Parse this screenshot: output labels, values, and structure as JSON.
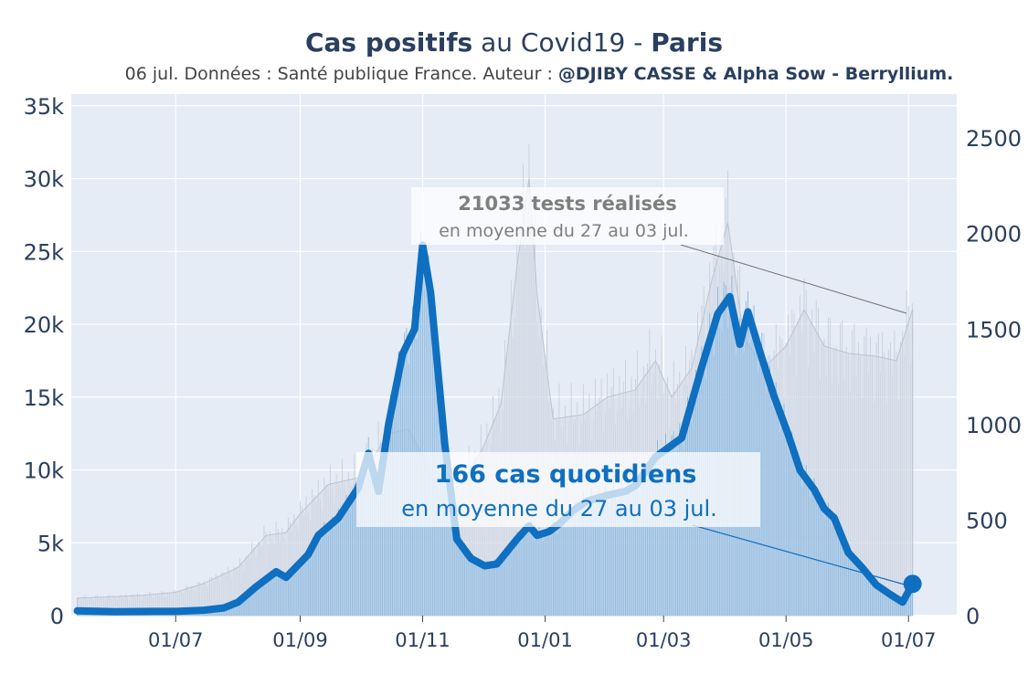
{
  "title": {
    "part1": "Cas positifs",
    "part2": " au Covid19 - ",
    "part3": "Paris"
  },
  "subtitle": {
    "text": "06 jul. Données : Santé publique France. Auteur : ",
    "author": "@DJIBY CASSE & Alpha Sow - Berryllium."
  },
  "colors": {
    "plot_bg": "#e5ecf6",
    "tests_fill": "#d3dae5",
    "cases_fill": "#9cc3e6",
    "cases_line": "#0f6fc0",
    "tests_annotation": "#7f7f7f"
  },
  "annotations": {
    "cases": {
      "bold": "166 cas quotidiens",
      "text": "en moyenne du 27 au 03 jul."
    },
    "tests": {
      "bold": "21033 tests réalisés",
      "text": "en moyenne du 27 au 03 jul."
    }
  },
  "chart_data": {
    "type": "area",
    "x_start": "2020-05-13",
    "x_end": "2021-07-03",
    "x_range": [
      "2020-05-10",
      "2021-07-25"
    ],
    "x_tick_dates": [
      "2020-07-01",
      "2020-09-01",
      "2020-11-01",
      "2021-01-01",
      "2021-03-01",
      "2021-05-01",
      "2021-07-01"
    ],
    "x_tick_labels": [
      "01/07",
      "01/09",
      "01/11",
      "01/01",
      "01/03",
      "01/05",
      "01/07"
    ],
    "y_left": {
      "range": [
        0,
        35800
      ],
      "ticks": [
        0,
        5000,
        10000,
        15000,
        20000,
        25000,
        30000,
        35000
      ],
      "tick_labels": [
        "0",
        "5k",
        "10k",
        "15k",
        "20k",
        "25k",
        "30k",
        "35k"
      ]
    },
    "y_right": {
      "range": [
        0,
        2730
      ],
      "ticks": [
        0,
        500,
        1000,
        1500,
        2000,
        2500
      ],
      "tick_labels": [
        "0",
        "500",
        "1000",
        "1500",
        "2000",
        "2500"
      ]
    },
    "tests_7day": [
      [
        "2020-05-13",
        1200
      ],
      [
        "2020-06-01",
        1300
      ],
      [
        "2020-06-15",
        1400
      ],
      [
        "2020-07-01",
        1600
      ],
      [
        "2020-07-15",
        2200
      ],
      [
        "2020-08-01",
        3300
      ],
      [
        "2020-08-15",
        5500
      ],
      [
        "2020-08-25",
        5700
      ],
      [
        "2020-09-01",
        7000
      ],
      [
        "2020-09-15",
        9000
      ],
      [
        "2020-10-01",
        9500
      ],
      [
        "2020-10-15",
        12500
      ],
      [
        "2020-10-25",
        12800
      ],
      [
        "2020-11-01",
        11000
      ],
      [
        "2020-11-10",
        8000
      ],
      [
        "2020-11-20",
        9000
      ],
      [
        "2020-12-01",
        11500
      ],
      [
        "2020-12-10",
        14500
      ],
      [
        "2020-12-18",
        24000
      ],
      [
        "2020-12-24",
        30000
      ],
      [
        "2020-12-28",
        22000
      ],
      [
        "2021-01-05",
        13500
      ],
      [
        "2021-01-20",
        13800
      ],
      [
        "2021-02-01",
        15000
      ],
      [
        "2021-02-15",
        15500
      ],
      [
        "2021-02-25",
        17500
      ],
      [
        "2021-03-05",
        15000
      ],
      [
        "2021-03-15",
        17000
      ],
      [
        "2021-03-25",
        23000
      ],
      [
        "2021-04-02",
        27000
      ],
      [
        "2021-04-10",
        19000
      ],
      [
        "2021-04-20",
        17000
      ],
      [
        "2021-05-01",
        18500
      ],
      [
        "2021-05-10",
        21000
      ],
      [
        "2021-05-20",
        18500
      ],
      [
        "2021-06-01",
        18000
      ],
      [
        "2021-06-15",
        17800
      ],
      [
        "2021-06-25",
        17500
      ],
      [
        "2021-07-03",
        21033
      ]
    ],
    "cases_7day": [
      [
        "2020-05-13",
        25
      ],
      [
        "2020-06-01",
        20
      ],
      [
        "2020-06-20",
        22
      ],
      [
        "2020-07-01",
        22
      ],
      [
        "2020-07-15",
        28
      ],
      [
        "2020-07-25",
        40
      ],
      [
        "2020-08-01",
        70
      ],
      [
        "2020-08-10",
        150
      ],
      [
        "2020-08-20",
        230
      ],
      [
        "2020-08-25",
        200
      ],
      [
        "2020-09-05",
        320
      ],
      [
        "2020-09-10",
        420
      ],
      [
        "2020-09-20",
        510
      ],
      [
        "2020-09-30",
        670
      ],
      [
        "2020-10-05",
        850
      ],
      [
        "2020-10-10",
        650
      ],
      [
        "2020-10-15",
        1000
      ],
      [
        "2020-10-22",
        1370
      ],
      [
        "2020-10-28",
        1500
      ],
      [
        "2020-11-01",
        1940
      ],
      [
        "2020-11-05",
        1690
      ],
      [
        "2020-11-12",
        900
      ],
      [
        "2020-11-18",
        400
      ],
      [
        "2020-11-25",
        300
      ],
      [
        "2020-12-02",
        260
      ],
      [
        "2020-12-08",
        270
      ],
      [
        "2020-12-18",
        400
      ],
      [
        "2020-12-24",
        470
      ],
      [
        "2020-12-28",
        420
      ],
      [
        "2021-01-03",
        440
      ],
      [
        "2021-01-08",
        480
      ],
      [
        "2021-01-15",
        550
      ],
      [
        "2021-01-22",
        600
      ],
      [
        "2021-02-01",
        630
      ],
      [
        "2021-02-10",
        650
      ],
      [
        "2021-02-15",
        680
      ],
      [
        "2021-02-25",
        830
      ],
      [
        "2021-03-10",
        930
      ],
      [
        "2021-03-20",
        1300
      ],
      [
        "2021-03-28",
        1580
      ],
      [
        "2021-04-03",
        1670
      ],
      [
        "2021-04-08",
        1420
      ],
      [
        "2021-04-12",
        1590
      ],
      [
        "2021-04-18",
        1380
      ],
      [
        "2021-04-25",
        1150
      ],
      [
        "2021-05-02",
        950
      ],
      [
        "2021-05-08",
        760
      ],
      [
        "2021-05-15",
        660
      ],
      [
        "2021-05-20",
        560
      ],
      [
        "2021-05-25",
        510
      ],
      [
        "2021-06-01",
        330
      ],
      [
        "2021-06-08",
        250
      ],
      [
        "2021-06-15",
        160
      ],
      [
        "2021-06-22",
        110
      ],
      [
        "2021-06-28",
        70
      ],
      [
        "2021-07-03",
        166
      ]
    ]
  }
}
